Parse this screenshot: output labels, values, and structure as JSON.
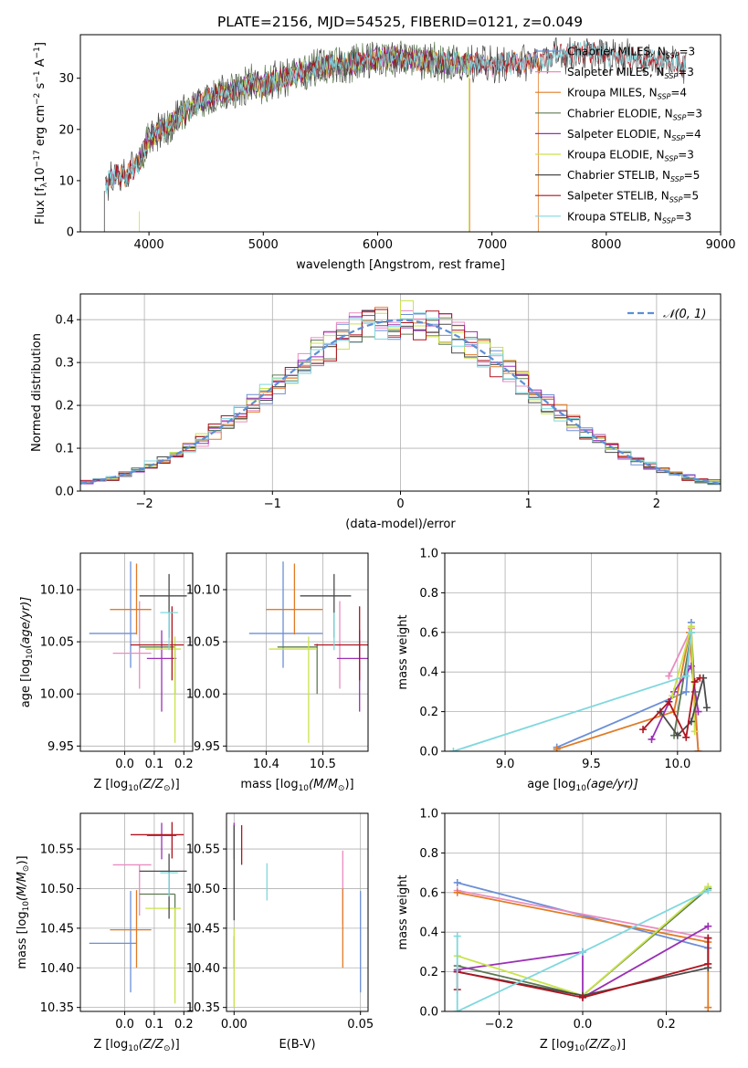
{
  "figure_title": "PLATE=2156, MJD=54525, FIBERID=0121, z=0.049",
  "colors": {
    "Chabrier MILES": "#6b8fd6",
    "Salpeter MILES": "#e98cc0",
    "Kroupa MILES": "#e07b25",
    "Chabrier ELODIE": "#5e7a52",
    "Salpeter ELODIE": "#9b30b5",
    "Kroupa ELODIE": "#c9e34a",
    "Chabrier STELIB": "#4a4a4a",
    "Salpeter STELIB": "#b0141f",
    "Kroupa STELIB": "#7fd8de",
    "normal": "#5b8fd6",
    "grid": "#b0b0b0"
  },
  "chart_data": [
    {
      "id": "spectrum",
      "type": "line",
      "xlabel": "wavelength [Angstrom, rest frame]",
      "ylabel_parts": [
        "Flux [f",
        "λ",
        "10",
        "−17",
        " erg cm",
        "−2",
        " s",
        "−1",
        " A",
        "−1",
        "]"
      ],
      "xlim": [
        3400,
        9000
      ],
      "ylim": [
        0,
        38.5
      ],
      "xticks": [
        4000,
        5000,
        6000,
        7000,
        8000,
        9000
      ],
      "yticks": [
        0,
        10,
        20,
        30
      ],
      "continuum": {
        "x": [
          3600,
          3700,
          3800,
          3900,
          4000,
          4100,
          4200,
          4300,
          4400,
          4500,
          4600,
          4700,
          4800,
          4900,
          5000,
          5100,
          5200,
          5300,
          5400,
          5500,
          5600,
          5700,
          5800,
          5900,
          6000,
          6200,
          6400,
          6600,
          6800,
          7000,
          7200,
          7400,
          7600,
          7800,
          8000,
          8200,
          8400,
          8600,
          8700
        ],
        "y": [
          9,
          11,
          11,
          13,
          18,
          20,
          21,
          23,
          25,
          26,
          27,
          27,
          28,
          29,
          28.5,
          29.5,
          30,
          31,
          31.5,
          32,
          32.5,
          32.5,
          33,
          33.5,
          34,
          34,
          33.5,
          33,
          33,
          32.5,
          33,
          33.5,
          34.5,
          35,
          34.5,
          34,
          33.5,
          33,
          32.5
        ]
      },
      "legend": [
        {
          "name": "Chabrier MILES, N",
          "sub": "SSP",
          "n": "=3"
        },
        {
          "name": "Salpeter MILES, N",
          "sub": "SSP",
          "n": "=3"
        },
        {
          "name": "Kroupa MILES, N",
          "sub": "SSP",
          "n": "=4"
        },
        {
          "name": "Chabrier ELODIE, N",
          "sub": "SSP",
          "n": "=3"
        },
        {
          "name": "Salpeter ELODIE, N",
          "sub": "SSP",
          "n": "=4"
        },
        {
          "name": "Kroupa ELODIE, N",
          "sub": "SSP",
          "n": "=3"
        },
        {
          "name": "Chabrier STELIB, N",
          "sub": "SSP",
          "n": "=5"
        },
        {
          "name": "Salpeter STELIB, N",
          "sub": "SSP",
          "n": "=5"
        },
        {
          "name": "Kroupa STELIB, N",
          "sub": "SSP",
          "n": "=3"
        }
      ],
      "legend_placement": "right"
    },
    {
      "id": "residuals",
      "type": "step-histogram",
      "xlabel": "(data-model)/error",
      "ylabel": "Normed distribution",
      "xlim": [
        -2.5,
        2.5
      ],
      "ylim": [
        0,
        0.46
      ],
      "xticks": [
        -2,
        -1,
        0,
        1,
        2
      ],
      "yticks": [
        0.0,
        0.1,
        0.2,
        0.3,
        0.4
      ],
      "grid": true,
      "bin_width": 0.1,
      "curve_label": "𝒩(0, 1)",
      "legend_placement": "top-right"
    },
    {
      "id": "age_vs_Z",
      "type": "errorbar",
      "xlabel": "Z [log",
      "xlabel_sub": "10",
      "xlabel_rest": "(Z/Z",
      "ylabel": "age  [log",
      "xlim": [
        -0.15,
        0.23
      ],
      "ylim": [
        9.945,
        10.135
      ],
      "xticks": [
        0.0,
        0.1,
        0.2
      ],
      "yticks": [
        9.95,
        10.0,
        10.05,
        10.1
      ],
      "grid": true,
      "points": [
        {
          "series": "Chabrier MILES",
          "x": 0.02,
          "xerr": [
            0.14,
            0.02
          ],
          "y": 10.058,
          "yerr": [
            0.033,
            0.069
          ]
        },
        {
          "series": "Salpeter MILES",
          "x": 0.05,
          "xerr": [
            0.09,
            0.04
          ],
          "y": 10.039,
          "yerr": [
            0.034,
            0.05
          ]
        },
        {
          "series": "Kroupa MILES",
          "x": 0.04,
          "xerr": [
            0.09,
            0.05
          ],
          "y": 10.081,
          "yerr": [
            0.024,
            0.044
          ]
        },
        {
          "series": "Chabrier ELODIE",
          "x": 0.17,
          "xerr": [
            0.12,
            0.0
          ],
          "y": 10.045,
          "yerr": [
            0.045,
            0.003
          ]
        },
        {
          "series": "Salpeter ELODIE",
          "x": 0.125,
          "xerr": [
            0.05,
            0.05
          ],
          "y": 10.034,
          "yerr": [
            0.051,
            0.027
          ]
        },
        {
          "series": "Kroupa ELODIE",
          "x": 0.17,
          "xerr": [
            0.1,
            0.02
          ],
          "y": 10.043,
          "yerr": [
            0.09,
            0.012
          ]
        },
        {
          "series": "Chabrier STELIB",
          "x": 0.15,
          "xerr": [
            0.1,
            0.06
          ],
          "y": 10.094,
          "yerr": [
            0.04,
            0.021
          ]
        },
        {
          "series": "Salpeter STELIB",
          "x": 0.16,
          "xerr": [
            0.14,
            0.04
          ],
          "y": 10.047,
          "yerr": [
            0.034,
            0.037
          ]
        },
        {
          "series": "Kroupa STELIB",
          "x": 0.15,
          "xerr": [
            0.03,
            0.03
          ],
          "y": 10.078,
          "yerr": [
            0.036,
            0.0
          ]
        }
      ]
    },
    {
      "id": "age_vs_mass",
      "type": "errorbar",
      "xlabel": "mass [log",
      "xlim": [
        10.33,
        10.58
      ],
      "ylim": [
        9.945,
        10.135
      ],
      "xticks": [
        10.4,
        10.5
      ],
      "yticks": [
        9.95,
        10.0,
        10.05,
        10.1
      ],
      "grid": true,
      "points": [
        {
          "series": "Chabrier MILES",
          "x": 10.43,
          "xerr": [
            0.06,
            0.07
          ],
          "y": 10.058,
          "yerr": [
            0.033,
            0.069
          ]
        },
        {
          "series": "Salpeter MILES",
          "x": 10.53,
          "xerr": [
            0.0,
            0.0
          ],
          "y": 10.039,
          "yerr": [
            0.034,
            0.05
          ]
        },
        {
          "series": "Kroupa MILES",
          "x": 10.45,
          "xerr": [
            0.05,
            0.05
          ],
          "y": 10.081,
          "yerr": [
            0.024,
            0.044
          ]
        },
        {
          "series": "Chabrier ELODIE",
          "x": 10.49,
          "xerr": [
            0.07,
            0.0
          ],
          "y": 10.045,
          "yerr": [
            0.045,
            0.003
          ]
        },
        {
          "series": "Salpeter ELODIE",
          "x": 10.565,
          "xerr": [
            0.04,
            0.02
          ],
          "y": 10.034,
          "yerr": [
            0.051,
            0.027
          ]
        },
        {
          "series": "Kroupa ELODIE",
          "x": 10.475,
          "xerr": [
            0.07,
            0.015
          ],
          "y": 10.043,
          "yerr": [
            0.09,
            0.012
          ]
        },
        {
          "series": "Chabrier STELIB",
          "x": 10.52,
          "xerr": [
            0.06,
            0.03
          ],
          "y": 10.094,
          "yerr": [
            0.04,
            0.021
          ]
        },
        {
          "series": "Salpeter STELIB",
          "x": 10.565,
          "xerr": [
            0.08,
            0.02
          ],
          "y": 10.047,
          "yerr": [
            0.034,
            0.037
          ]
        },
        {
          "series": "Kroupa STELIB",
          "x": 10.52,
          "xerr": [
            0.0,
            0.0
          ],
          "y": 10.078,
          "yerr": [
            0.036,
            0.0
          ]
        }
      ]
    },
    {
      "id": "weight_vs_age",
      "type": "line",
      "xlabel": "age  [log",
      "ylabel": "mass weight",
      "xlim": [
        8.65,
        10.25
      ],
      "ylim": [
        0,
        1.0
      ],
      "xticks": [
        9.0,
        9.5,
        10.0
      ],
      "yticks": [
        0.0,
        0.2,
        0.4,
        0.6,
        0.8,
        1.0
      ],
      "grid": true,
      "series": [
        {
          "name": "Chabrier MILES",
          "x": [
            9.3,
            10.05,
            10.08
          ],
          "y": [
            0.02,
            0.3,
            0.65
          ]
        },
        {
          "name": "Salpeter MILES",
          "x": [
            9.95,
            10.08,
            10.12
          ],
          "y": [
            0.38,
            0.62,
            0.0
          ]
        },
        {
          "name": "Kroupa MILES",
          "x": [
            9.3,
            9.98,
            10.07,
            10.12
          ],
          "y": [
            0.01,
            0.2,
            0.6,
            0.0
          ]
        },
        {
          "name": "Chabrier ELODIE",
          "x": [
            9.98,
            10.08,
            10.1
          ],
          "y": [
            0.08,
            0.6,
            0.3
          ]
        },
        {
          "name": "Salpeter ELODIE",
          "x": [
            9.85,
            9.98,
            10.08,
            10.12
          ],
          "y": [
            0.06,
            0.3,
            0.43,
            0.2
          ]
        },
        {
          "name": "Kroupa ELODIE",
          "x": [
            9.97,
            10.08,
            10.1
          ],
          "y": [
            0.28,
            0.63,
            0.1
          ]
        },
        {
          "name": "Chabrier STELIB",
          "x": [
            9.9,
            10.0,
            10.08,
            10.15,
            10.17
          ],
          "y": [
            0.2,
            0.08,
            0.15,
            0.37,
            0.22
          ]
        },
        {
          "name": "Salpeter STELIB",
          "x": [
            9.8,
            9.95,
            10.05,
            10.1,
            10.13
          ],
          "y": [
            0.11,
            0.25,
            0.07,
            0.35,
            0.37
          ]
        },
        {
          "name": "Kroupa STELIB",
          "x": [
            8.7,
            10.05,
            10.08
          ],
          "y": [
            0.0,
            0.38,
            0.6
          ]
        }
      ]
    },
    {
      "id": "mass_vs_Z",
      "type": "errorbar",
      "xlabel": "Z [log",
      "ylabel": "mass [log",
      "xlim": [
        -0.15,
        0.23
      ],
      "ylim": [
        10.345,
        10.595
      ],
      "xticks": [
        0.0,
        0.1,
        0.2
      ],
      "yticks": [
        10.35,
        10.4,
        10.45,
        10.5,
        10.55
      ],
      "grid": true,
      "points": [
        {
          "series": "Chabrier MILES",
          "x": 0.02,
          "xerr": [
            0.14,
            0.02
          ],
          "y": 10.431,
          "yerr": [
            0.062,
            0.066
          ]
        },
        {
          "series": "Salpeter MILES",
          "x": 0.05,
          "xerr": [
            0.09,
            0.04
          ],
          "y": 10.53,
          "yerr": [
            0.064,
            0.0
          ]
        },
        {
          "series": "Kroupa MILES",
          "x": 0.04,
          "xerr": [
            0.09,
            0.05
          ],
          "y": 10.448,
          "yerr": [
            0.048,
            0.05
          ]
        },
        {
          "series": "Chabrier ELODIE",
          "x": 0.17,
          "xerr": [
            0.12,
            0.0
          ],
          "y": 10.493,
          "yerr": [
            0.042,
            0.0
          ]
        },
        {
          "series": "Salpeter ELODIE",
          "x": 0.125,
          "xerr": [
            0.05,
            0.05
          ],
          "y": 10.567,
          "yerr": [
            0.03,
            0.016
          ]
        },
        {
          "series": "Kroupa ELODIE",
          "x": 0.17,
          "xerr": [
            0.1,
            0.02
          ],
          "y": 10.475,
          "yerr": [
            0.12,
            0.0
          ]
        },
        {
          "series": "Chabrier STELIB",
          "x": 0.15,
          "xerr": [
            0.1,
            0.06
          ],
          "y": 10.522,
          "yerr": [
            0.06,
            0.022
          ]
        },
        {
          "series": "Salpeter STELIB",
          "x": 0.16,
          "xerr": [
            0.14,
            0.04
          ],
          "y": 10.568,
          "yerr": [
            0.03,
            0.016
          ]
        },
        {
          "series": "Kroupa STELIB",
          "x": 0.15,
          "xerr": [
            0.03,
            0.03
          ],
          "y": 10.52,
          "yerr": [
            0.03,
            0.0
          ]
        }
      ]
    },
    {
      "id": "mass_vs_ebv",
      "type": "errorbar",
      "xlabel": "E(B-V)",
      "xlim": [
        -0.003,
        0.053
      ],
      "ylim": [
        10.345,
        10.595
      ],
      "xticks": [
        0.0,
        0.05
      ],
      "yticks": [
        10.35,
        10.4,
        10.45,
        10.5,
        10.55
      ],
      "grid": true,
      "points": [
        {
          "series": "Chabrier MILES",
          "x": 0.05,
          "y": 10.431,
          "yerr": [
            0.062,
            0.066
          ]
        },
        {
          "series": "Salpeter MILES",
          "x": 0.043,
          "y": 10.5,
          "yerr": [
            0.045,
            0.048
          ]
        },
        {
          "series": "Kroupa MILES",
          "x": 0.043,
          "y": 10.45,
          "yerr": [
            0.05,
            0.05
          ]
        },
        {
          "series": "Chabrier ELODIE",
          "x": 0.0,
          "y": 10.44,
          "yerr": [
            0.04,
            0.0
          ]
        },
        {
          "series": "Salpeter ELODIE",
          "x": 0.0,
          "y": 10.567,
          "yerr": [
            0.03,
            0.016
          ]
        },
        {
          "series": "Kroupa ELODIE",
          "x": 0.0,
          "y": 10.41,
          "yerr": [
            0.06,
            0.04
          ]
        },
        {
          "series": "Chabrier STELIB",
          "x": 0.0,
          "y": 10.53,
          "yerr": [
            0.07,
            0.05
          ]
        },
        {
          "series": "Salpeter STELIB",
          "x": 0.003,
          "y": 10.56,
          "yerr": [
            0.03,
            0.02
          ]
        },
        {
          "series": "Kroupa STELIB",
          "x": 0.013,
          "y": 10.51,
          "yerr": [
            0.025,
            0.022
          ]
        }
      ]
    },
    {
      "id": "weight_vs_Z",
      "type": "line",
      "xlabel": "Z [log",
      "ylabel": "mass weight",
      "xlim": [
        -0.33,
        0.33
      ],
      "ylim": [
        0,
        1.0
      ],
      "xticks": [
        -0.2,
        0.0,
        0.2
      ],
      "yticks": [
        0.0,
        0.2,
        0.4,
        0.6,
        0.8,
        1.0
      ],
      "grid": true,
      "series": [
        {
          "name": "Chabrier MILES",
          "x": [
            -0.3,
            0.3
          ],
          "y": [
            0.65,
            0.32
          ]
        },
        {
          "name": "Salpeter MILES",
          "x": [
            -0.3,
            0.3
          ],
          "y": [
            0.61,
            0.37
          ]
        },
        {
          "name": "Kroupa MILES",
          "x": [
            -0.3,
            0.3,
            0.3
          ],
          "y": [
            0.6,
            0.35,
            0.02
          ]
        },
        {
          "name": "Chabrier ELODIE",
          "x": [
            -0.3,
            0.0,
            0.3
          ],
          "y": [
            0.23,
            0.08,
            0.62
          ]
        },
        {
          "name": "Salpeter ELODIE",
          "x": [
            -0.3,
            0.0,
            0.0,
            0.3
          ],
          "y": [
            0.21,
            0.3,
            0.07,
            0.43
          ]
        },
        {
          "name": "Kroupa ELODIE",
          "x": [
            -0.3,
            0.0,
            0.3
          ],
          "y": [
            0.28,
            0.08,
            0.63
          ]
        },
        {
          "name": "Chabrier STELIB",
          "x": [
            -0.3,
            0.0,
            0.3,
            0.3
          ],
          "y": [
            0.2,
            0.08,
            0.22,
            0.37
          ]
        },
        {
          "name": "Salpeter STELIB",
          "x": [
            -0.3,
            -0.3,
            0.0,
            0.3,
            0.3
          ],
          "y": [
            0.11,
            0.2,
            0.07,
            0.24,
            0.37
          ]
        },
        {
          "name": "Kroupa STELIB",
          "x": [
            -0.3,
            -0.3,
            0.0,
            0.3
          ],
          "y": [
            0.38,
            0.0,
            0.3,
            0.61
          ]
        }
      ]
    }
  ],
  "symbols": {
    "sun": "⊙",
    "age_unit": "(age/yr)]",
    "mass_unit": "(M/M",
    "close": ")]",
    "log": "log",
    "sub10": "10"
  }
}
